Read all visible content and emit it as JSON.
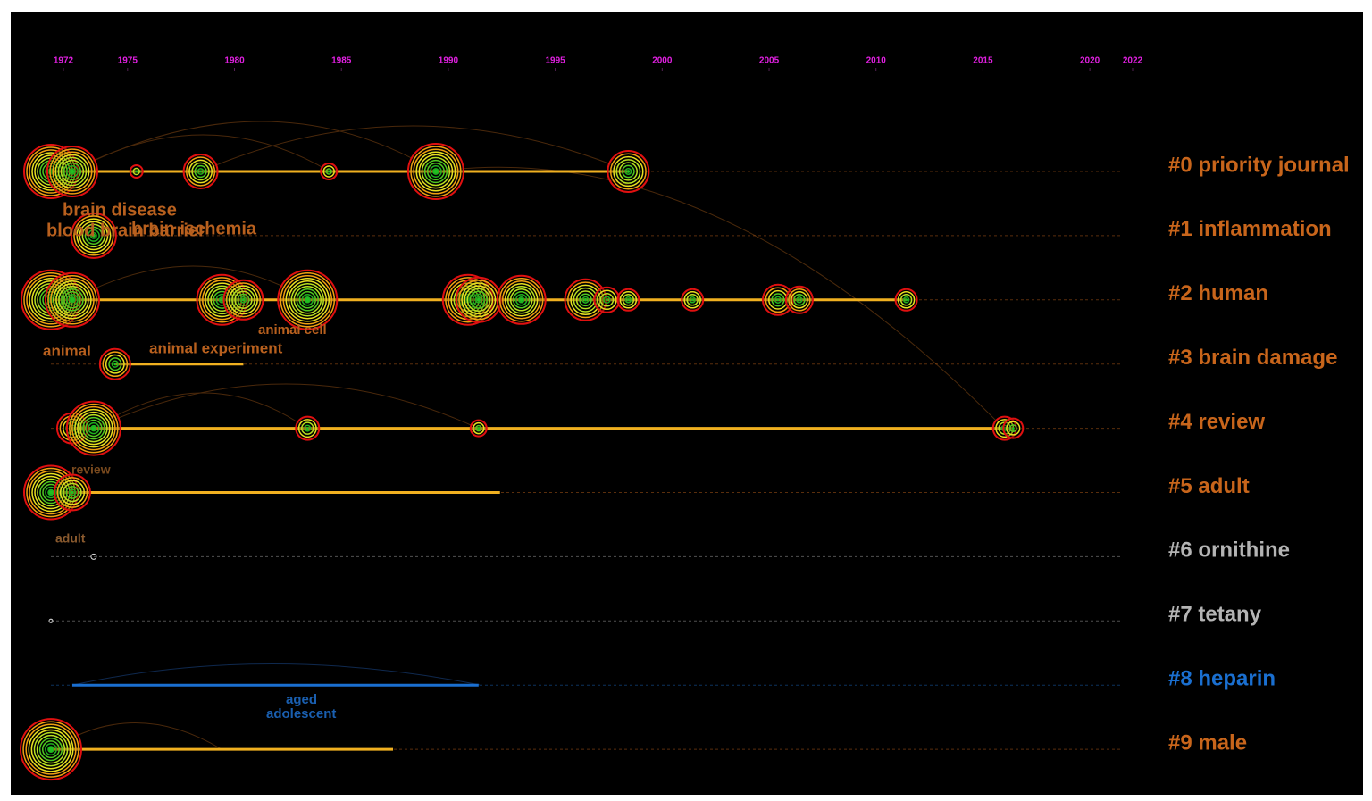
{
  "chart_data": {
    "type": "timeline",
    "xlim": [
      1972,
      2022
    ],
    "xticks": [
      1972,
      1975,
      1980,
      1985,
      1990,
      1995,
      2000,
      2005,
      2010,
      2015,
      2020,
      2022
    ],
    "clusters": [
      {
        "name": "#0 priority journal",
        "color": "#c8651b",
        "span": [
          1972,
          1999
        ],
        "nodes": {
          "years": [
            1972,
            1973,
            1976,
            1979,
            1985,
            1990,
            1999
          ],
          "sizes": [
            30,
            28,
            7,
            19,
            9,
            31,
            23
          ]
        }
      },
      {
        "name": "#1 inflammation",
        "color": "#c8651b",
        "span": [
          1974,
          1974
        ],
        "nodes": {
          "years": [
            1974
          ],
          "sizes": [
            25
          ]
        }
      },
      {
        "name": "#2 human",
        "color": "#c8651b",
        "span": [
          1972,
          2012
        ],
        "nodes": {
          "years": [
            1972,
            1973,
            1980,
            1981,
            1984,
            1991.5,
            1992,
            1994,
            1997,
            1998,
            1999,
            2002,
            2006,
            2007,
            2012
          ],
          "sizes": [
            33,
            30,
            28,
            22,
            33,
            28,
            25,
            27,
            23,
            14,
            12,
            12,
            17,
            15,
            12
          ]
        }
      },
      {
        "name": "#3 brain damage",
        "color": "#c8651b",
        "span": [
          1975,
          1981
        ],
        "nodes": {
          "years": [
            1975
          ],
          "sizes": [
            17
          ]
        }
      },
      {
        "name": "#4 review",
        "color": "#c8651b",
        "span": [
          1973,
          2017
        ],
        "nodes": {
          "years": [
            1973,
            1974,
            1984,
            1992,
            2016.6,
            2017
          ],
          "sizes": [
            17,
            30,
            13,
            9,
            13,
            11
          ]
        }
      },
      {
        "name": "#5 adult",
        "color": "#c8651b",
        "span": [
          1972,
          1993
        ],
        "nodes": {
          "years": [
            1972,
            1973
          ],
          "sizes": [
            30,
            20
          ]
        }
      },
      {
        "name": "#6 ornithine",
        "color": "#b4b4b4",
        "span": [
          1974,
          1974
        ],
        "nodes": {
          "years": [
            1974
          ],
          "sizes": [
            3
          ]
        }
      },
      {
        "name": "#7 tetany",
        "color": "#b4b4b4",
        "span": [
          1972,
          1972
        ],
        "nodes": {
          "years": [
            1972
          ],
          "sizes": [
            2
          ]
        }
      },
      {
        "name": "#8 heparin",
        "color": "#1a6fd0",
        "span": [
          1973,
          1992
        ],
        "nodes": {
          "years": [],
          "sizes": []
        }
      },
      {
        "name": "#9 male",
        "color": "#c8651b",
        "span": [
          1972,
          1988
        ],
        "nodes": {
          "years": [
            1972
          ],
          "sizes": [
            34
          ]
        }
      }
    ],
    "annotations": [
      "brain disease",
      "blood brain barrier",
      "brain ischemia",
      "animal cell",
      "animal",
      "animal experiment",
      "review",
      "adult",
      "aged",
      "adolescent"
    ]
  }
}
